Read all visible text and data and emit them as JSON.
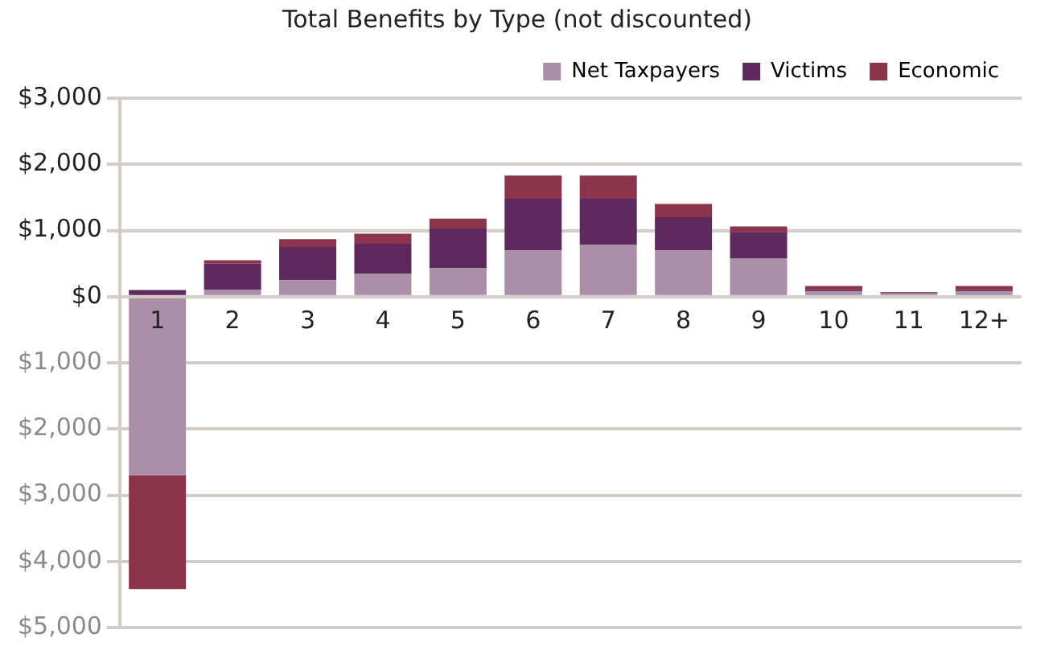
{
  "chart_data": {
    "type": "bar",
    "title": "Total Benefits by Type (not discounted)",
    "stacked": true,
    "legend": "top right",
    "grid": "y",
    "categories": [
      "1",
      "2",
      "3",
      "4",
      "5",
      "6",
      "7",
      "8",
      "9",
      "10",
      "11",
      "12+"
    ],
    "series": [
      {
        "name": "Net Taxpayers",
        "color": "#ab8fa8",
        "values": [
          -2700,
          100,
          250,
          350,
          430,
          700,
          780,
          700,
          580,
          80,
          50,
          80
        ]
      },
      {
        "name": "Victims",
        "color": "#5e2a5e",
        "values": [
          100,
          400,
          500,
          450,
          600,
          780,
          700,
          500,
          400,
          20,
          10,
          20
        ]
      },
      {
        "name": "Economic",
        "color": "#8b344c",
        "values": [
          -1720,
          50,
          120,
          150,
          150,
          350,
          350,
          200,
          80,
          60,
          10,
          60
        ]
      }
    ],
    "ylim": [
      -5000,
      3000
    ],
    "yticks": [
      {
        "value": -5000,
        "label": "$5,000"
      },
      {
        "value": -4000,
        "label": "$4,000"
      },
      {
        "value": -3000,
        "label": "$3,000"
      },
      {
        "value": -2000,
        "label": "$2,000"
      },
      {
        "value": -1000,
        "label": "$1,000"
      },
      {
        "value": 0,
        "label": "$0"
      },
      {
        "value": 1000,
        "label": "$1,000"
      },
      {
        "value": 2000,
        "label": "$2,000"
      },
      {
        "value": 3000,
        "label": "$3,000"
      }
    ]
  }
}
